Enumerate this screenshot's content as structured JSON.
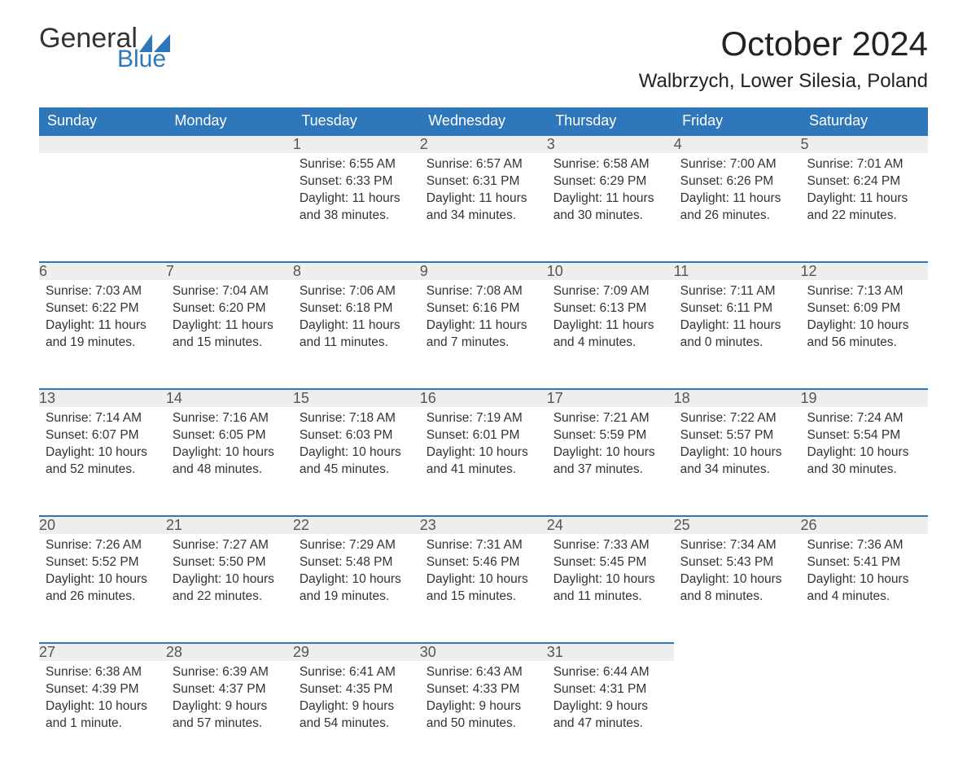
{
  "logo": {
    "text1": "General",
    "text2": "Blue",
    "flag_color": "#2f77bb"
  },
  "header": {
    "month_title": "October 2024",
    "location": "Walbrzych, Lower Silesia, Poland"
  },
  "colors": {
    "header_bg": "#2f77bb",
    "header_fg": "#ffffff",
    "daynum_bg": "#eeeeee",
    "daynum_border": "#2f77bb",
    "body_bg": "#ffffff",
    "text": "#333333"
  },
  "typography": {
    "month_title_size": 42,
    "location_size": 24,
    "weekday_size": 18,
    "daynum_size": 18,
    "body_size": 15.5
  },
  "labels": {
    "sunrise": "Sunrise:",
    "sunset": "Sunset:",
    "daylight": "Daylight:"
  },
  "calendar": {
    "type": "table",
    "weekdays": [
      "Sunday",
      "Monday",
      "Tuesday",
      "Wednesday",
      "Thursday",
      "Friday",
      "Saturday"
    ],
    "weeks": [
      [
        null,
        null,
        {
          "n": "1",
          "sunrise": "6:55 AM",
          "sunset": "6:33 PM",
          "daylight": "11 hours and 38 minutes."
        },
        {
          "n": "2",
          "sunrise": "6:57 AM",
          "sunset": "6:31 PM",
          "daylight": "11 hours and 34 minutes."
        },
        {
          "n": "3",
          "sunrise": "6:58 AM",
          "sunset": "6:29 PM",
          "daylight": "11 hours and 30 minutes."
        },
        {
          "n": "4",
          "sunrise": "7:00 AM",
          "sunset": "6:26 PM",
          "daylight": "11 hours and 26 minutes."
        },
        {
          "n": "5",
          "sunrise": "7:01 AM",
          "sunset": "6:24 PM",
          "daylight": "11 hours and 22 minutes."
        }
      ],
      [
        {
          "n": "6",
          "sunrise": "7:03 AM",
          "sunset": "6:22 PM",
          "daylight": "11 hours and 19 minutes."
        },
        {
          "n": "7",
          "sunrise": "7:04 AM",
          "sunset": "6:20 PM",
          "daylight": "11 hours and 15 minutes."
        },
        {
          "n": "8",
          "sunrise": "7:06 AM",
          "sunset": "6:18 PM",
          "daylight": "11 hours and 11 minutes."
        },
        {
          "n": "9",
          "sunrise": "7:08 AM",
          "sunset": "6:16 PM",
          "daylight": "11 hours and 7 minutes."
        },
        {
          "n": "10",
          "sunrise": "7:09 AM",
          "sunset": "6:13 PM",
          "daylight": "11 hours and 4 minutes."
        },
        {
          "n": "11",
          "sunrise": "7:11 AM",
          "sunset": "6:11 PM",
          "daylight": "11 hours and 0 minutes."
        },
        {
          "n": "12",
          "sunrise": "7:13 AM",
          "sunset": "6:09 PM",
          "daylight": "10 hours and 56 minutes."
        }
      ],
      [
        {
          "n": "13",
          "sunrise": "7:14 AM",
          "sunset": "6:07 PM",
          "daylight": "10 hours and 52 minutes."
        },
        {
          "n": "14",
          "sunrise": "7:16 AM",
          "sunset": "6:05 PM",
          "daylight": "10 hours and 48 minutes."
        },
        {
          "n": "15",
          "sunrise": "7:18 AM",
          "sunset": "6:03 PM",
          "daylight": "10 hours and 45 minutes."
        },
        {
          "n": "16",
          "sunrise": "7:19 AM",
          "sunset": "6:01 PM",
          "daylight": "10 hours and 41 minutes."
        },
        {
          "n": "17",
          "sunrise": "7:21 AM",
          "sunset": "5:59 PM",
          "daylight": "10 hours and 37 minutes."
        },
        {
          "n": "18",
          "sunrise": "7:22 AM",
          "sunset": "5:57 PM",
          "daylight": "10 hours and 34 minutes."
        },
        {
          "n": "19",
          "sunrise": "7:24 AM",
          "sunset": "5:54 PM",
          "daylight": "10 hours and 30 minutes."
        }
      ],
      [
        {
          "n": "20",
          "sunrise": "7:26 AM",
          "sunset": "5:52 PM",
          "daylight": "10 hours and 26 minutes."
        },
        {
          "n": "21",
          "sunrise": "7:27 AM",
          "sunset": "5:50 PM",
          "daylight": "10 hours and 22 minutes."
        },
        {
          "n": "22",
          "sunrise": "7:29 AM",
          "sunset": "5:48 PM",
          "daylight": "10 hours and 19 minutes."
        },
        {
          "n": "23",
          "sunrise": "7:31 AM",
          "sunset": "5:46 PM",
          "daylight": "10 hours and 15 minutes."
        },
        {
          "n": "24",
          "sunrise": "7:33 AM",
          "sunset": "5:45 PM",
          "daylight": "10 hours and 11 minutes."
        },
        {
          "n": "25",
          "sunrise": "7:34 AM",
          "sunset": "5:43 PM",
          "daylight": "10 hours and 8 minutes."
        },
        {
          "n": "26",
          "sunrise": "7:36 AM",
          "sunset": "5:41 PM",
          "daylight": "10 hours and 4 minutes."
        }
      ],
      [
        {
          "n": "27",
          "sunrise": "6:38 AM",
          "sunset": "4:39 PM",
          "daylight": "10 hours and 1 minute."
        },
        {
          "n": "28",
          "sunrise": "6:39 AM",
          "sunset": "4:37 PM",
          "daylight": "9 hours and 57 minutes."
        },
        {
          "n": "29",
          "sunrise": "6:41 AM",
          "sunset": "4:35 PM",
          "daylight": "9 hours and 54 minutes."
        },
        {
          "n": "30",
          "sunrise": "6:43 AM",
          "sunset": "4:33 PM",
          "daylight": "9 hours and 50 minutes."
        },
        {
          "n": "31",
          "sunrise": "6:44 AM",
          "sunset": "4:31 PM",
          "daylight": "9 hours and 47 minutes."
        },
        null,
        null
      ]
    ]
  }
}
